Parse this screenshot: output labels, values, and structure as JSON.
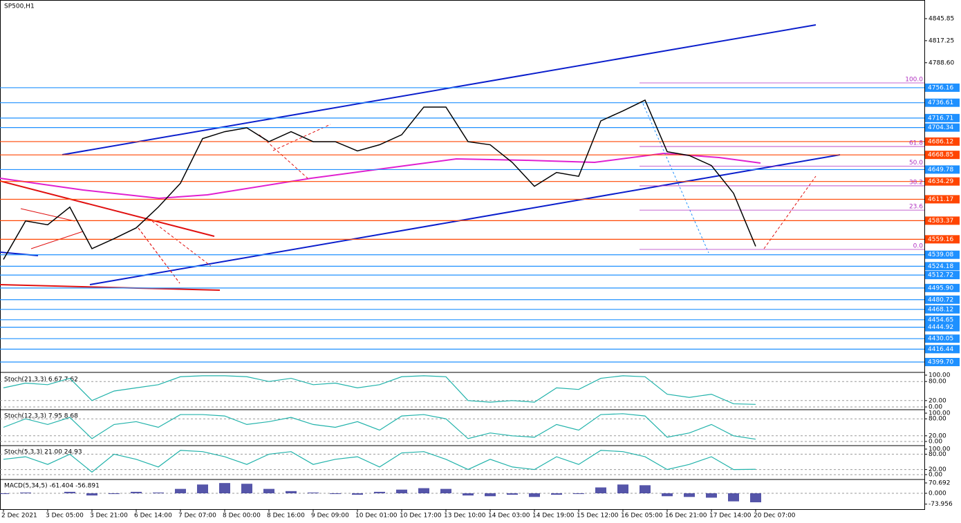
{
  "chart_data": [
    {
      "type": "line",
      "title": "SP500,H1",
      "color": "#000000",
      "categories": [
        "2 Dec 2021",
        null,
        "3 Dec 05:00",
        null,
        "3 Dec 21:00",
        null,
        "6 Dec 14:00",
        null,
        "7 Dec 07:00",
        null,
        "8 Dec 00:00",
        null,
        "8 Dec 16:00",
        null,
        "9 Dec 09:00",
        null,
        "10 Dec 01:00",
        null,
        "10 Dec 17:00",
        null,
        "13 Dec 10:00",
        null,
        "14 Dec 03:00",
        null,
        "14 Dec 19:00",
        null,
        "15 Dec 12:00",
        null,
        "16 Dec 05:00",
        null,
        "16 Dec 21:00",
        null,
        "17 Dec 14:00",
        null,
        "20 Dec 07:00"
      ],
      "values": [
        4533,
        4583,
        4578,
        4601,
        4547,
        4560,
        4574,
        4601,
        4632,
        4690,
        4699,
        4704,
        4686,
        4699,
        4686,
        4686,
        4674,
        4682,
        4695,
        4731,
        4731,
        4686,
        4682,
        4659,
        4628,
        4646,
        4641,
        4713,
        4726,
        4740,
        4673,
        4668,
        4655,
        4619,
        4550
      ],
      "ylim": [
        4387.14,
        4870.09
      ],
      "yticks": [
        {
          "value": 4845.85,
          "label": "4845.85"
        },
        {
          "value": 4817.25,
          "label": "4817.25"
        },
        {
          "value": 4788.6,
          "label": "4788.60"
        }
      ],
      "levels": [
        {
          "value": 4756.16,
          "label": "4756.16",
          "color": "#1e90ff"
        },
        {
          "value": 4736.61,
          "label": "4736.61",
          "color": "#1e90ff"
        },
        {
          "value": 4716.71,
          "label": "4716.71",
          "color": "#1e90ff"
        },
        {
          "value": 4704.34,
          "label": "4704.34",
          "color": "#1e90ff"
        },
        {
          "value": 4686.12,
          "label": "4686.12",
          "color": "#ff4500"
        },
        {
          "value": 4668.85,
          "label": "4668.85",
          "color": "#ff4500"
        },
        {
          "value": 4649.78,
          "label": "4649.78",
          "color": "#1e90ff"
        },
        {
          "value": 4634.29,
          "label": "4634.29",
          "color": "#ff4500"
        },
        {
          "value": 4611.17,
          "label": "4611.17",
          "color": "#ff4500"
        },
        {
          "value": 4583.37,
          "label": "4583.37",
          "color": "#ff4500"
        },
        {
          "value": 4559.16,
          "label": "4559.16",
          "color": "#ff4500"
        },
        {
          "value": 4539.08,
          "label": "4539.08",
          "color": "#1e90ff"
        },
        {
          "value": 4524.18,
          "label": "4524.18",
          "color": "#1e90ff"
        },
        {
          "value": 4512.72,
          "label": "4512.72",
          "color": "#1e90ff"
        },
        {
          "value": 4495.9,
          "label": "4495.90",
          "color": "#1e90ff"
        },
        {
          "value": 4480.72,
          "label": "4480.72",
          "color": "#1e90ff"
        },
        {
          "value": 4468.12,
          "label": "4468.12",
          "color": "#1e90ff"
        },
        {
          "value": 4454.65,
          "label": "4454.65",
          "color": "#1e90ff"
        },
        {
          "value": 4444.92,
          "label": "4444.92",
          "color": "#1e90ff"
        },
        {
          "value": 4430.05,
          "label": "4430.05",
          "color": "#1e90ff"
        },
        {
          "value": 4416.44,
          "label": "4416.44",
          "color": "#1e90ff"
        },
        {
          "value": 4399.7,
          "label": "4399.70",
          "color": "#1e90ff"
        }
      ],
      "fib_levels": [
        {
          "value": 100,
          "label": "100.0"
        },
        {
          "value": 61.8,
          "label": "61.8"
        },
        {
          "value": 50,
          "label": "50.0"
        },
        {
          "value": 38.2,
          "label": "38.2"
        },
        {
          "value": 23.6,
          "label": "23.6"
        },
        {
          "value": 0,
          "label": "0.0"
        }
      ]
    },
    {
      "type": "line",
      "title": "Stoch(21,3,3) 6.67 7.62",
      "color": "#20b2aa",
      "ylim": [
        -4.3,
        104.3
      ],
      "yticks": [
        {
          "value": 100,
          "label": "100.00"
        },
        {
          "value": 80,
          "label": "80.00"
        },
        {
          "value": 20,
          "label": "20.00"
        },
        {
          "value": 0,
          "label": "0.00"
        }
      ],
      "values": [
        60,
        75,
        70,
        90,
        20,
        50,
        60,
        70,
        95,
        98,
        98,
        95,
        80,
        90,
        70,
        75,
        60,
        70,
        95,
        98,
        95,
        20,
        15,
        20,
        15,
        60,
        55,
        90,
        98,
        95,
        40,
        30,
        40,
        10,
        8
      ]
    },
    {
      "type": "line",
      "title": "Stoch(12,3,3) 7.95 8.68",
      "color": "#20b2aa",
      "ylim": [
        -9.8,
        109.8
      ],
      "yticks": [
        {
          "value": 100,
          "label": "100.00"
        },
        {
          "value": 80,
          "label": "80.00"
        },
        {
          "value": 20,
          "label": "20.00"
        },
        {
          "value": 0,
          "label": "0.00"
        }
      ],
      "values": [
        50,
        80,
        60,
        85,
        10,
        60,
        70,
        50,
        95,
        95,
        90,
        60,
        70,
        85,
        60,
        50,
        70,
        40,
        90,
        95,
        80,
        10,
        30,
        20,
        15,
        60,
        40,
        95,
        98,
        90,
        15,
        30,
        60,
        20,
        8
      ]
    },
    {
      "type": "line",
      "title": "Stoch(5,3,3) 21.00 24.93",
      "color": "#20b2aa",
      "ylim": [
        -13.5,
        110.8
      ],
      "yticks": [
        {
          "value": 100,
          "label": "100.00"
        },
        {
          "value": 80,
          "label": "80.00"
        },
        {
          "value": 20,
          "label": "20.00"
        },
        {
          "value": 0,
          "label": "0.00"
        }
      ],
      "values": [
        60,
        70,
        40,
        80,
        10,
        80,
        60,
        30,
        95,
        90,
        70,
        40,
        80,
        90,
        40,
        60,
        70,
        30,
        85,
        90,
        60,
        20,
        60,
        30,
        20,
        70,
        40,
        95,
        90,
        70,
        20,
        40,
        70,
        20,
        21
      ]
    },
    {
      "type": "bar",
      "title": "MACD(5,34,5) -61.404 -56.891",
      "color": "#1c1c8c",
      "ylim": [
        -108.5,
        89.6
      ],
      "yticks": [
        {
          "value": 70.692,
          "label": "70.692"
        },
        {
          "value": 0,
          "label": "0.000"
        },
        {
          "value": -73.956,
          "label": "-73.956"
        }
      ],
      "values": [
        -5,
        5,
        0,
        10,
        -15,
        -5,
        10,
        5,
        30,
        60,
        70,
        65,
        30,
        15,
        5,
        -5,
        -10,
        10,
        25,
        35,
        30,
        -15,
        -20,
        -10,
        -25,
        -10,
        -5,
        40,
        60,
        55,
        -20,
        -25,
        -30,
        -55,
        -61.4
      ]
    }
  ]
}
